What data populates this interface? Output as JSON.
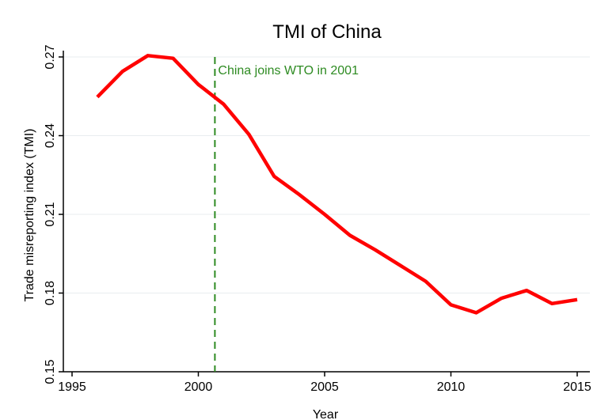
{
  "chart_data": {
    "type": "line",
    "title": "TMI of China",
    "xlabel": "Year",
    "ylabel": "Trade misreporting index (TMI)",
    "xlim": [
      1995,
      2015
    ],
    "ylim": [
      0.15,
      0.27
    ],
    "x_ticks": [
      "1995",
      "2000",
      "2005",
      "2010",
      "2015"
    ],
    "y_ticks": [
      "0.15",
      "0.18",
      "0.21",
      "0.24",
      "0.27"
    ],
    "grid": true,
    "series": [
      {
        "color": "#ff0000",
        "x": [
          1996,
          1997,
          1998,
          1999,
          2000,
          2001,
          2002,
          2003,
          2004,
          2005,
          2006,
          2007,
          2008,
          2009,
          2010,
          2011,
          2012,
          2013,
          2014,
          2015
        ],
        "values": [
          0.2547,
          0.2645,
          0.2705,
          0.2695,
          0.2595,
          0.252,
          0.2405,
          0.2245,
          0.2175,
          0.21,
          0.202,
          0.1965,
          0.1905,
          0.1845,
          0.1755,
          0.1725,
          0.178,
          0.181,
          0.176,
          0.1775
        ]
      }
    ],
    "annotations": [
      {
        "x": 2001,
        "label": "China joins WTO in 2001",
        "color": "#2e8b22",
        "style": "dashed"
      }
    ]
  }
}
